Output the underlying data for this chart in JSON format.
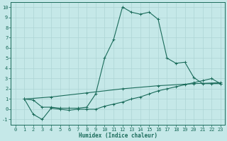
{
  "xlabel": "Humidex (Indice chaleur)",
  "background_color": "#c5e8e8",
  "grid_color": "#aed4d4",
  "line_color": "#1a6b5a",
  "xlim": [
    -0.5,
    23.5
  ],
  "ylim": [
    -1.5,
    10.5
  ],
  "xticks": [
    0,
    1,
    2,
    3,
    4,
    5,
    6,
    7,
    8,
    9,
    10,
    11,
    12,
    13,
    14,
    15,
    16,
    17,
    18,
    19,
    20,
    21,
    22,
    23
  ],
  "yticks": [
    -1,
    0,
    1,
    2,
    3,
    4,
    5,
    6,
    7,
    8,
    9,
    10
  ],
  "series1_x": [
    1,
    2,
    3,
    4,
    5,
    6,
    7,
    8,
    9,
    10,
    11,
    12,
    13,
    14,
    15,
    16,
    17,
    18,
    19,
    20,
    21,
    22,
    23
  ],
  "series1_y": [
    1.0,
    0.9,
    0.2,
    0.2,
    0.1,
    0.1,
    0.1,
    0.2,
    1.5,
    5.0,
    6.8,
    10.0,
    9.5,
    9.3,
    9.5,
    8.8,
    5.0,
    4.5,
    4.6,
    3.1,
    2.5,
    2.5,
    2.5
  ],
  "series2_x": [
    1,
    2,
    3,
    4,
    5,
    6,
    7,
    8,
    9,
    10,
    11,
    12,
    13,
    14,
    15,
    16,
    17,
    18,
    19,
    20,
    21,
    22,
    23
  ],
  "series2_y": [
    1.0,
    -0.5,
    -1.0,
    0.1,
    0.0,
    -0.1,
    0.0,
    0.0,
    0.0,
    0.3,
    0.5,
    0.7,
    1.0,
    1.2,
    1.5,
    1.8,
    2.0,
    2.2,
    2.4,
    2.6,
    2.8,
    3.0,
    2.5
  ],
  "series3_x": [
    1,
    4,
    8,
    12,
    16,
    20,
    23
  ],
  "series3_y": [
    1.0,
    1.2,
    1.6,
    2.0,
    2.3,
    2.5,
    2.6
  ],
  "marker": "+",
  "markersize": 3,
  "linewidth": 0.8,
  "xlabel_fontsize": 5.5,
  "tick_fontsize": 5.0
}
